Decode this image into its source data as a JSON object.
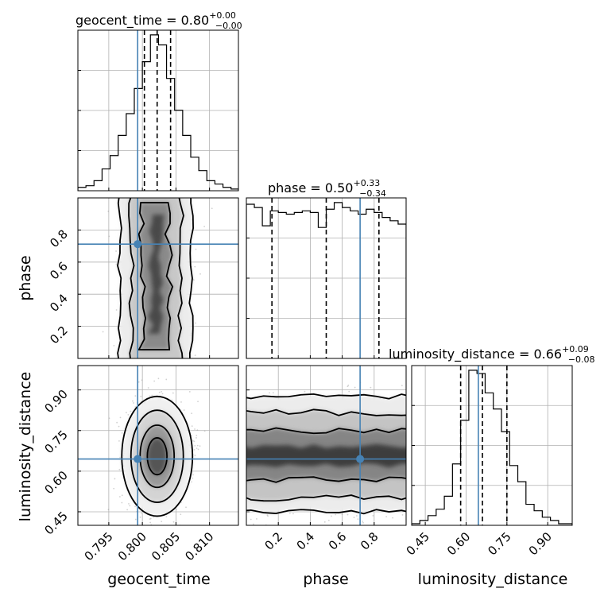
{
  "chart_data": {
    "type": "corner",
    "parameters": [
      "geocent_time",
      "phase",
      "luminosity_distance"
    ],
    "truths": [
      0.7993,
      0.712,
      0.645
    ],
    "truth_color": "#4682b4",
    "ranges": [
      [
        0.7904,
        0.8143
      ],
      [
        0.0,
        1.0
      ],
      [
        0.4,
        0.99
      ]
    ],
    "titles": [
      {
        "param": "geocent_time",
        "median": "0.80",
        "plus": "+0.00",
        "minus": "−0.00"
      },
      {
        "param": "phase",
        "median": "0.50",
        "plus": "+0.33",
        "minus": "−0.34"
      },
      {
        "param": "luminosity_distance",
        "median": "0.66",
        "plus": "+0.09",
        "minus": "−0.08"
      }
    ],
    "quantiles": [
      [
        0.8003,
        0.8022,
        0.8042
      ],
      [
        0.16,
        0.5,
        0.83
      ],
      [
        0.58,
        0.66,
        0.75
      ]
    ],
    "ticks": [
      {
        "values": [
          0.795,
          0.8,
          0.805,
          0.81
        ],
        "labels": [
          "0.795",
          "0.800",
          "0.805",
          "0.810"
        ]
      },
      {
        "values": [
          0.2,
          0.4,
          0.6,
          0.8
        ],
        "labels": [
          "0.2",
          "0.4",
          "0.6",
          "0.8"
        ]
      },
      {
        "values": [
          0.45,
          0.6,
          0.75,
          0.9
        ],
        "labels": [
          "0.45",
          "0.60",
          "0.75",
          "0.90"
        ]
      }
    ],
    "histograms": [
      {
        "param": "geocent_time",
        "bin_edges": [
          0.7904,
          0.7916,
          0.7928,
          0.794,
          0.7952,
          0.7964,
          0.7976,
          0.7988,
          0.8,
          0.8012,
          0.8024,
          0.8036,
          0.8048,
          0.806,
          0.8072,
          0.8084,
          0.8096,
          0.8108,
          0.812,
          0.8132,
          0.8143
        ],
        "counts": [
          2,
          3,
          6,
          13,
          21,
          33,
          46,
          61,
          77,
          93,
          87,
          67,
          48,
          33,
          20,
          12,
          6,
          4,
          2,
          1
        ]
      },
      {
        "param": "phase",
        "bin_edges": [
          0.0,
          0.05,
          0.1,
          0.15,
          0.2,
          0.25,
          0.3,
          0.35,
          0.4,
          0.45,
          0.5,
          0.55,
          0.6,
          0.65,
          0.7,
          0.75,
          0.8,
          0.85,
          0.9,
          0.95,
          1.0
        ],
        "counts": [
          93,
          91,
          80,
          89,
          88,
          87,
          88,
          89,
          88,
          79,
          90,
          94,
          91,
          89,
          87,
          90,
          88,
          85,
          83,
          81
        ]
      },
      {
        "param": "luminosity_distance",
        "bin_edges": [
          0.4,
          0.43,
          0.46,
          0.49,
          0.52,
          0.55,
          0.58,
          0.61,
          0.64,
          0.67,
          0.7,
          0.73,
          0.76,
          0.79,
          0.82,
          0.85,
          0.88,
          0.91,
          0.94,
          0.97,
          0.99
        ],
        "counts": [
          1,
          3,
          6,
          10,
          18,
          38,
          65,
          96,
          94,
          82,
          72,
          58,
          37,
          27,
          13,
          9,
          5,
          3,
          1,
          1
        ]
      }
    ]
  }
}
